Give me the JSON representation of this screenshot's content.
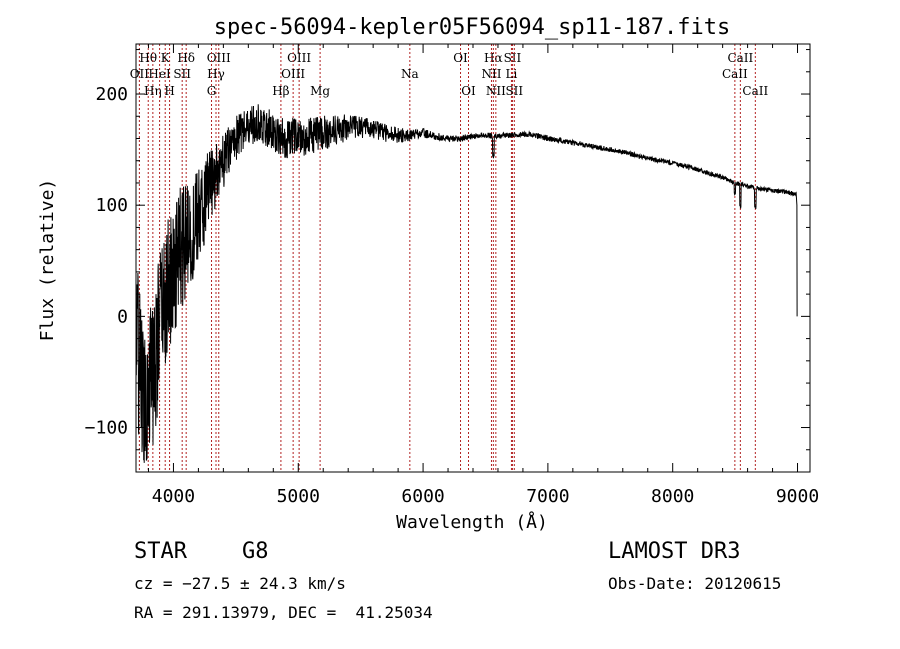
{
  "chart_data": {
    "type": "line",
    "title": "spec-56094-kepler05F56094_sp11-187.fits",
    "xlabel": "Wavelength (Å)",
    "ylabel": "Flux (relative)",
    "xlim": [
      3700,
      9100
    ],
    "ylim": [
      -140,
      245
    ],
    "x_ticks": [
      4000,
      5000,
      6000,
      7000,
      8000,
      9000
    ],
    "x_tick_labels": [
      "4000",
      "5000",
      "6000",
      "7000",
      "8000",
      "9000"
    ],
    "y_ticks": [
      -100,
      0,
      100,
      200
    ],
    "y_tick_labels": [
      "−100",
      "0",
      "100",
      "200"
    ],
    "line_color": "#000000",
    "marker_color": "#b22222",
    "series": [
      {
        "name": "spectrum",
        "envelope_x": [
          3700,
          3750,
          3800,
          3850,
          3900,
          3950,
          4000,
          4050,
          4100,
          4150,
          4200,
          4250,
          4300,
          4350,
          4400,
          4450,
          4500,
          4600,
          4700,
          4800,
          4900,
          5000,
          5100,
          5200,
          5300,
          5400,
          5500,
          5600,
          5700,
          5800,
          5900,
          6000,
          6100,
          6200,
          6300,
          6400,
          6500,
          6600,
          6700,
          6800,
          6900,
          7000,
          7200,
          7400,
          7600,
          7800,
          8000,
          8200,
          8400,
          8500,
          8600,
          8700,
          8800,
          8900,
          8990
        ],
        "envelope_y": [
          -10,
          -70,
          -60,
          -40,
          0,
          20,
          40,
          60,
          65,
          75,
          90,
          105,
          115,
          130,
          140,
          150,
          160,
          170,
          175,
          165,
          160,
          162,
          162,
          165,
          168,
          170,
          170,
          168,
          165,
          163,
          163,
          165,
          162,
          160,
          160,
          162,
          163,
          162,
          163,
          164,
          163,
          160,
          156,
          152,
          148,
          142,
          138,
          132,
          125,
          120,
          117,
          115,
          113,
          112,
          110
        ],
        "noise_x": [
          3700,
          3800,
          3900,
          4000,
          4100,
          4200,
          4300,
          4400,
          4500,
          4600,
          4700,
          4800,
          5000,
          5200,
          5400,
          5500,
          5600,
          5700,
          5800,
          5900,
          6000,
          6200,
          6500,
          7000,
          8000,
          9000
        ],
        "noise_amp": [
          70,
          75,
          70,
          60,
          55,
          45,
          35,
          25,
          20,
          18,
          18,
          18,
          18,
          16,
          12,
          10,
          9,
          8,
          7,
          5,
          4,
          3,
          2.5,
          2.5,
          2,
          2
        ]
      }
    ],
    "lines": [
      {
        "label": "Hθ",
        "x": 3798,
        "row": 1
      },
      {
        "label": "OII",
        "x": 3727,
        "row": 2
      },
      {
        "label": "Hη",
        "x": 3835,
        "row": 3
      },
      {
        "label": "K",
        "x": 3934,
        "row": 1
      },
      {
        "label": "HeI",
        "x": 3889,
        "row": 2
      },
      {
        "label": "H",
        "x": 3969,
        "row": 3
      },
      {
        "label": "Hδ",
        "x": 4102,
        "row": 1
      },
      {
        "label": "SII",
        "x": 4070,
        "row": 2
      },
      {
        "label": "OIII",
        "x": 4363,
        "row": 1
      },
      {
        "label": "Hγ",
        "x": 4341,
        "row": 2
      },
      {
        "label": "G",
        "x": 4305,
        "row": 3
      },
      {
        "label": "Hβ",
        "x": 4861,
        "row": 3
      },
      {
        "label": "OIII",
        "x": 5007,
        "row": 1
      },
      {
        "label": "OIII",
        "x": 4959,
        "row": 2
      },
      {
        "label": "Mg",
        "x": 5175,
        "row": 3
      },
      {
        "label": "Na",
        "x": 5894,
        "row": 2
      },
      {
        "label": "OI",
        "x": 6300,
        "row": 1
      },
      {
        "label": "OI",
        "x": 6364,
        "row": 3
      },
      {
        "label": "Hα",
        "x": 6563,
        "row": 1
      },
      {
        "label": "NII",
        "x": 6548,
        "row": 2
      },
      {
        "label": "NII",
        "x": 6583,
        "row": 3
      },
      {
        "label": "SII",
        "x": 6716,
        "row": 1
      },
      {
        "label": "Li",
        "x": 6708,
        "row": 2
      },
      {
        "label": "SII",
        "x": 6731,
        "row": 3
      },
      {
        "label": "CaII",
        "x": 8542,
        "row": 1
      },
      {
        "label": "CaII",
        "x": 8498,
        "row": 2
      },
      {
        "label": "CaII",
        "x": 8662,
        "row": 3
      }
    ]
  },
  "info": {
    "object_class": "STAR",
    "subclass": "G8",
    "survey": "LAMOST DR3",
    "velocity": "cz = −27.5 ± 24.3 km/s",
    "obs_date": "Obs-Date: 20120615",
    "coordinates": "RA = 291.13979, DEC =  41.25034"
  }
}
